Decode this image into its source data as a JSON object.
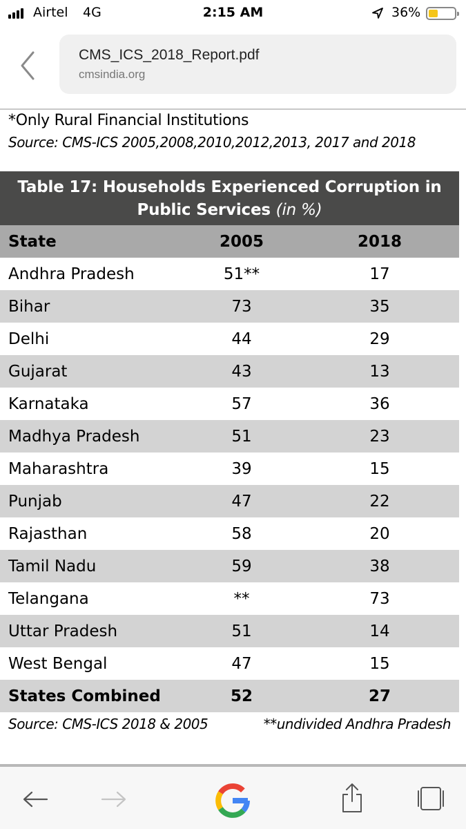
{
  "status_bar": {
    "carrier": "Airtel",
    "network": "4G",
    "time": "2:15 AM",
    "battery_percent": "36%",
    "battery_level": 0.36,
    "battery_color": "#f5c518"
  },
  "browser": {
    "page_title": "CMS_ICS_2018_Report.pdf",
    "domain": "cmsindia.org",
    "back_icon": "chevron-left-icon"
  },
  "document": {
    "note": "*Only Rural Financial Institutions",
    "source_top": "Source: CMS-ICS 2005,2008,2010,2012,2013, 2017 and 2018",
    "table_title_line1": "Table 17: Households Experienced Corruption in",
    "table_title_line2": "Public Services",
    "table_title_unit": "(in %)",
    "columns": [
      "State",
      "2005",
      "2018"
    ],
    "rows": [
      {
        "state": "Andhra Pradesh",
        "y2005": "51**",
        "y2018": "17"
      },
      {
        "state": "Bihar",
        "y2005": "73",
        "y2018": "35"
      },
      {
        "state": "Delhi",
        "y2005": "44",
        "y2018": "29"
      },
      {
        "state": "Gujarat",
        "y2005": "43",
        "y2018": "13"
      },
      {
        "state": "Karnataka",
        "y2005": "57",
        "y2018": "36"
      },
      {
        "state": "Madhya Pradesh",
        "y2005": "51",
        "y2018": "23"
      },
      {
        "state": "Maharashtra",
        "y2005": "39",
        "y2018": "15"
      },
      {
        "state": "Punjab",
        "y2005": "47",
        "y2018": "22"
      },
      {
        "state": "Rajasthan",
        "y2005": "58",
        "y2018": "20"
      },
      {
        "state": "Tamil Nadu",
        "y2005": "59",
        "y2018": "38"
      },
      {
        "state": "Telangana",
        "y2005": "**",
        "y2018": "73"
      },
      {
        "state": "Uttar Pradesh",
        "y2005": "51",
        "y2018": "14"
      },
      {
        "state": "West Bengal",
        "y2005": "47",
        "y2018": "15"
      }
    ],
    "total": {
      "state": "States Combined",
      "y2005": "52",
      "y2018": "27"
    },
    "source_bottom": "Source: CMS-ICS 2018 & 2005",
    "footnote": "**undivided Andhra Pradesh",
    "header_bg": "#4a4a49",
    "column_header_bg": "#a9a9a9",
    "stripe_bg": "#d3d3d3"
  },
  "toolbar": {
    "icons": [
      "back-arrow-icon",
      "forward-arrow-icon",
      "google-icon",
      "share-icon",
      "tabs-icon"
    ]
  }
}
